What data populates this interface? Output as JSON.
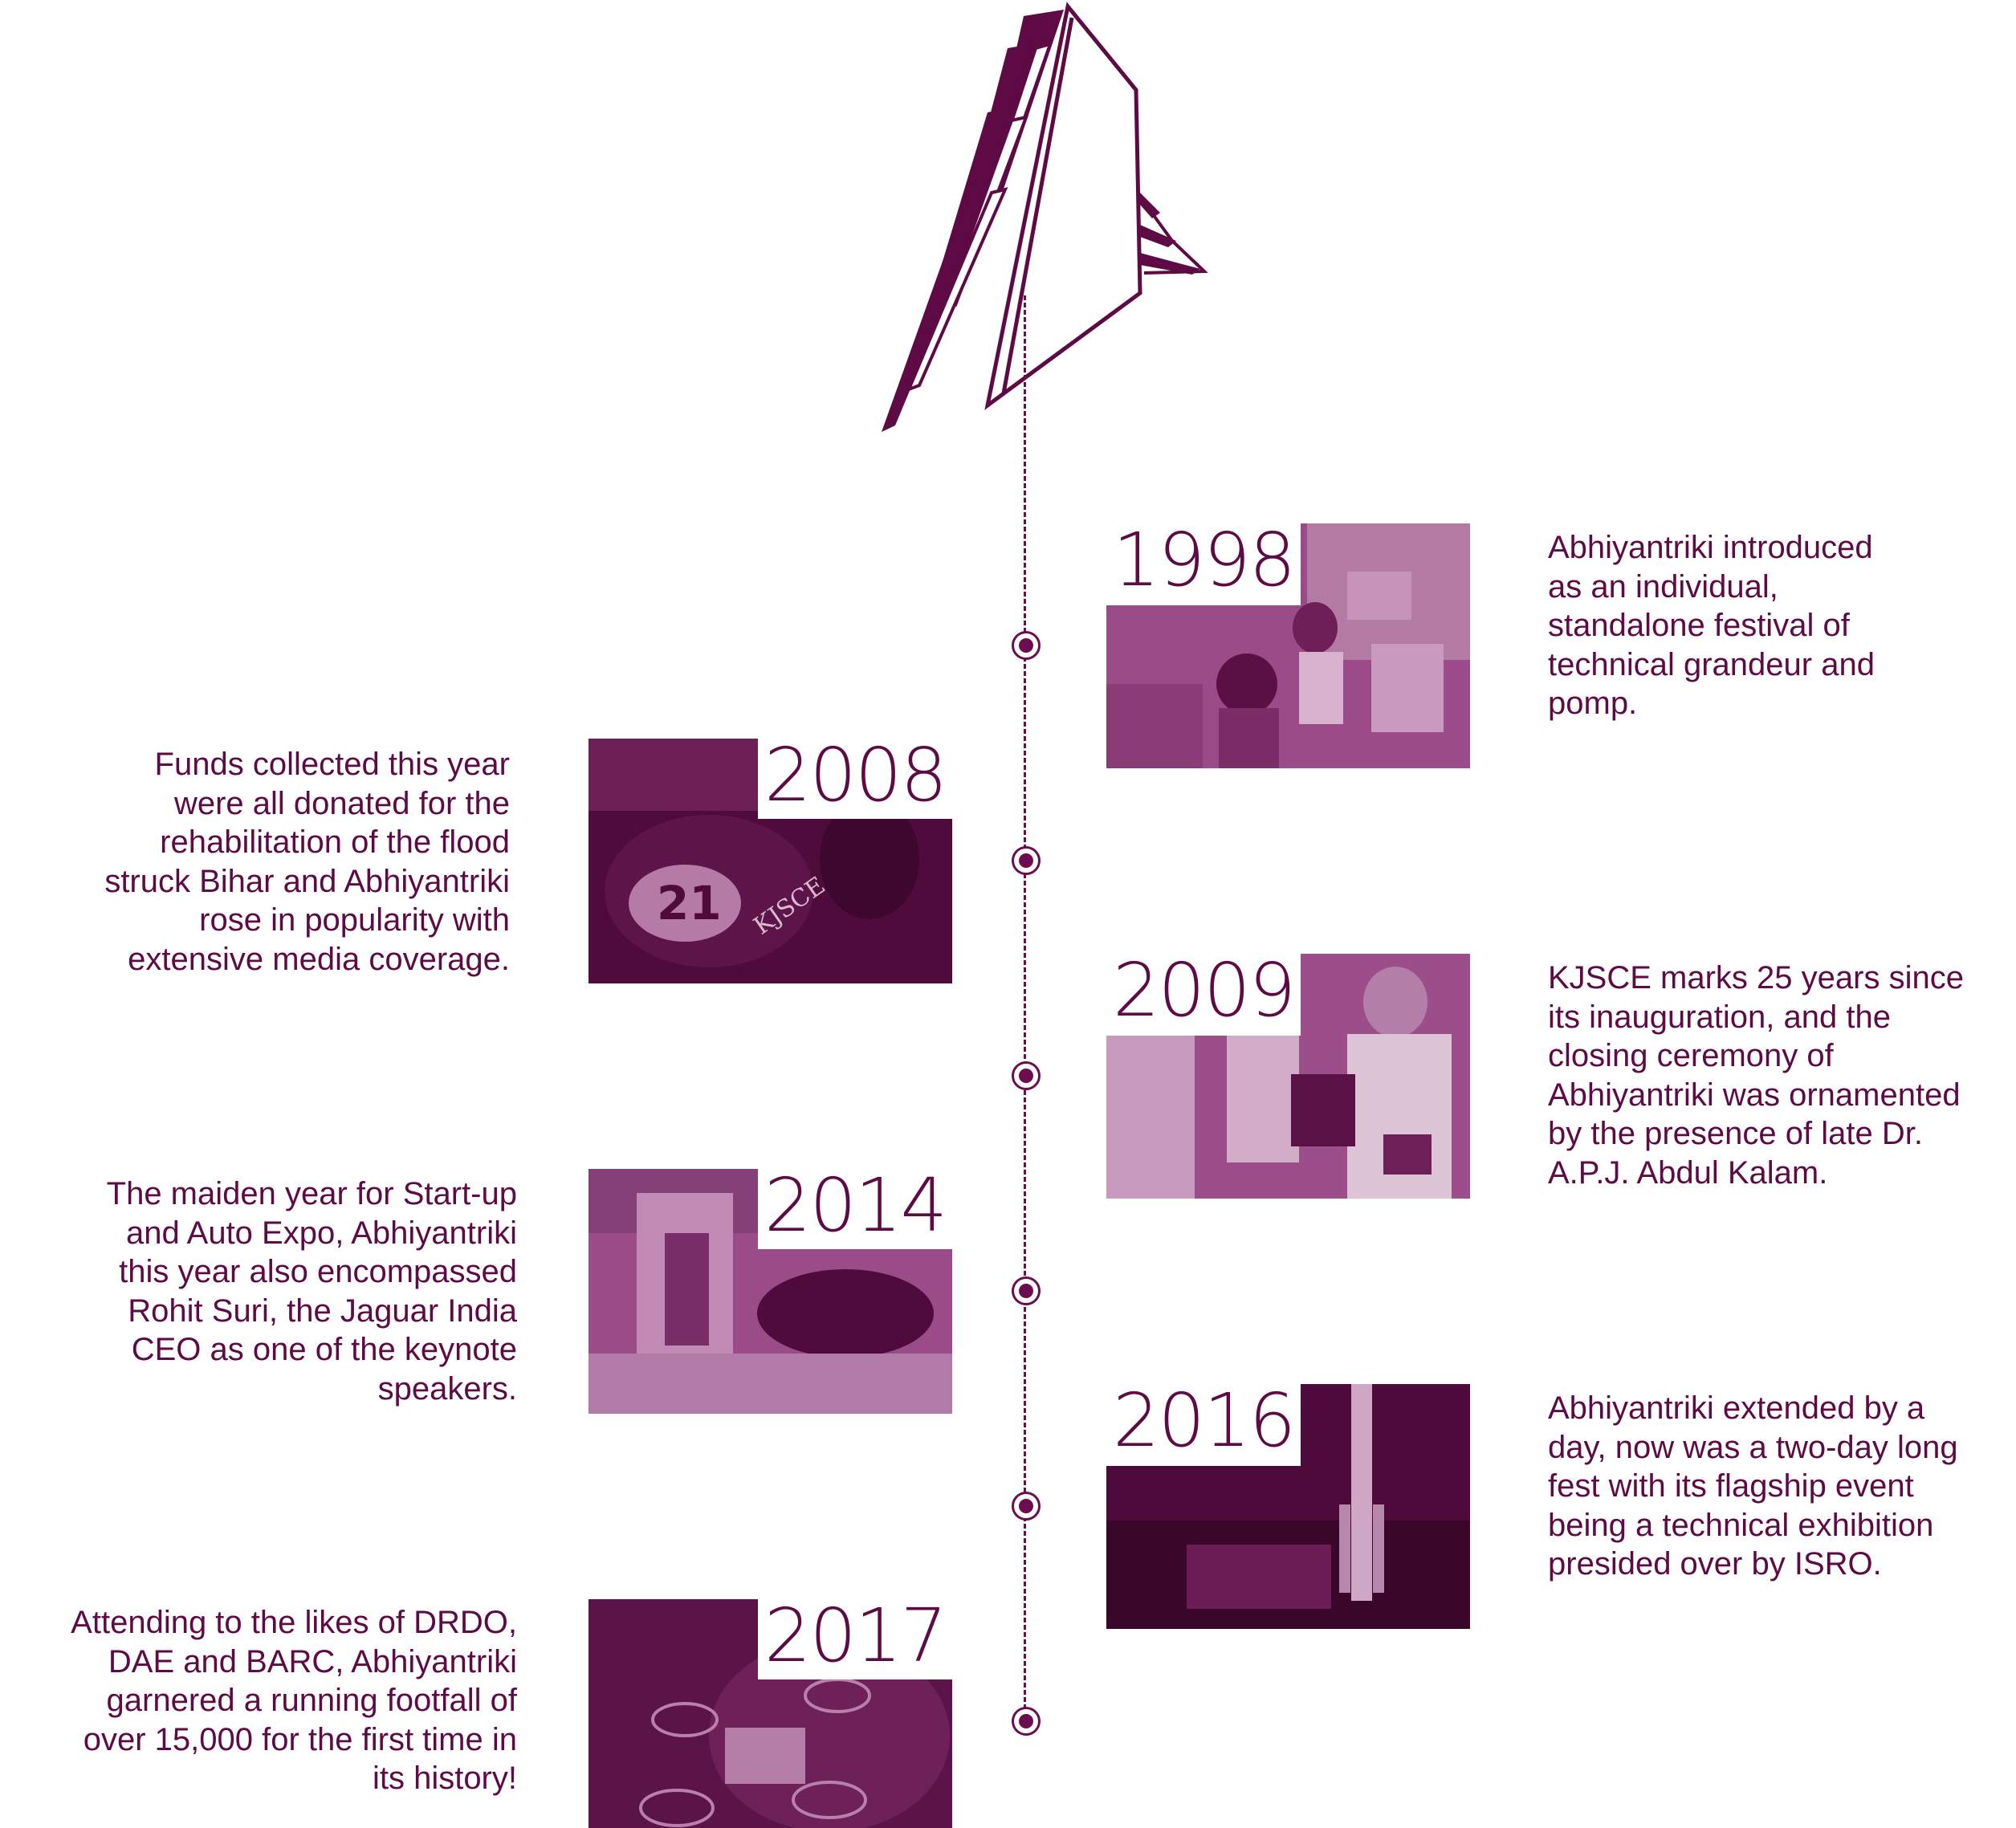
{
  "logo": {
    "name": "abhiyantriki-a-logo"
  },
  "colors": {
    "primary": "#5e0a44",
    "photo_tint_light": "#9a4a86",
    "photo_tint_dark": "#4d0a3a"
  },
  "events": [
    {
      "year": "1998",
      "lines": [
        " Abhiyantriki introduced",
        "as an individual,",
        "standalone festival of",
        "technical grandeur and",
        "pomp."
      ]
    },
    {
      "year": "2008",
      "lines": [
        "Funds collected this year",
        "were all donated for the",
        "rehabilitation of the flood",
        "struck Bihar and Abhiyantriki",
        "rose in popularity with",
        "extensive media coverage."
      ]
    },
    {
      "year": "2009",
      "lines": [
        " KJSCE marks 25 years since",
        "its inauguration,  and the",
        "closing ceremony of",
        "Abhiyantriki was ornamented",
        "by the presence of late Dr.",
        "A.P.J. Abdul Kalam."
      ]
    },
    {
      "year": "2014",
      "lines": [
        "The maiden year for Start-up",
        "and Auto Expo, Abhiyantriki",
        "this year also encompassed",
        "Rohit Suri, the Jaguar India",
        "CEO as one of the keynote",
        "speakers."
      ]
    },
    {
      "year": "2016",
      "lines": [
        "Abhiyantriki extended by a",
        "day, now was a two-day long",
        "fest with its flagship event",
        "being a technical exhibition",
        "presided over by ISRO."
      ]
    },
    {
      "year": "2017",
      "lines": [
        "Attending to the likes of DRDO,",
        "DAE and BARC, Abhiyantriki",
        "garnered a running footfall of",
        "over 15,000 for the first time in",
        "its history!"
      ]
    }
  ]
}
